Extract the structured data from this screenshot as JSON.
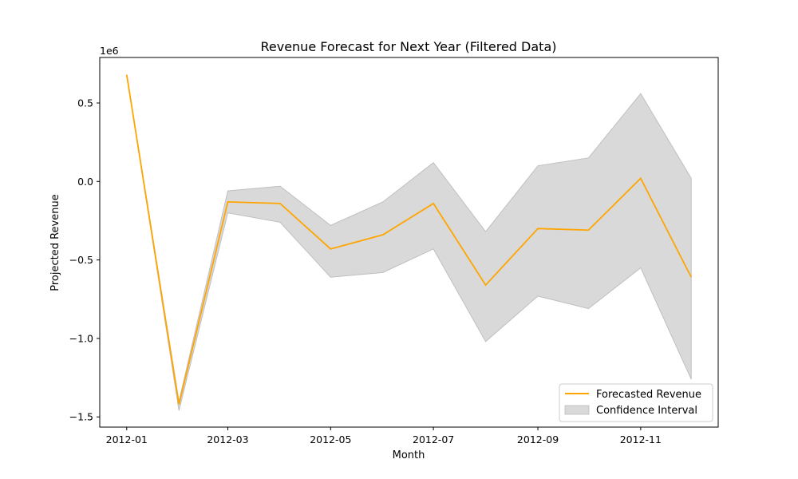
{
  "chart_data": {
    "type": "line",
    "title": "Revenue Forecast for Next Year (Filtered Data)",
    "xlabel": "Month",
    "ylabel": "Projected Revenue",
    "y_offset_label": "1e6",
    "x": [
      "2012-01-01",
      "2012-02-01",
      "2012-03-01",
      "2012-04-01",
      "2012-05-01",
      "2012-06-01",
      "2012-07-01",
      "2012-08-01",
      "2012-09-01",
      "2012-10-01",
      "2012-11-01",
      "2012-12-01"
    ],
    "series": [
      {
        "name": "Forecasted Revenue",
        "color": "#FFA500",
        "values": [
          0.68,
          -1.42,
          -0.13,
          -0.14,
          -0.43,
          -0.34,
          -0.14,
          -0.66,
          -0.3,
          -0.31,
          0.02,
          -0.61
        ]
      }
    ],
    "confidence_interval": {
      "name": "Confidence Interval",
      "color": "#d9d9d9",
      "lower": [
        0.68,
        -1.46,
        -0.2,
        -0.26,
        -0.61,
        -0.58,
        -0.43,
        -1.02,
        -0.73,
        -0.81,
        -0.55,
        -1.26
      ],
      "upper": [
        0.68,
        -1.4,
        -0.06,
        -0.03,
        -0.28,
        -0.13,
        0.12,
        -0.32,
        0.1,
        0.15,
        0.56,
        0.02
      ]
    },
    "xticks": [
      "2012-01",
      "2012-03",
      "2012-05",
      "2012-07",
      "2012-09",
      "2012-11"
    ],
    "yticks": [
      "-1.5",
      "-1.0",
      "-0.5",
      "0.0",
      "0.5"
    ],
    "ylim": [
      -1.565,
      0.79
    ],
    "xlim": [
      "2011-12-16",
      "2012-12-17"
    ],
    "grid": false,
    "legend_position": "lower-right"
  }
}
